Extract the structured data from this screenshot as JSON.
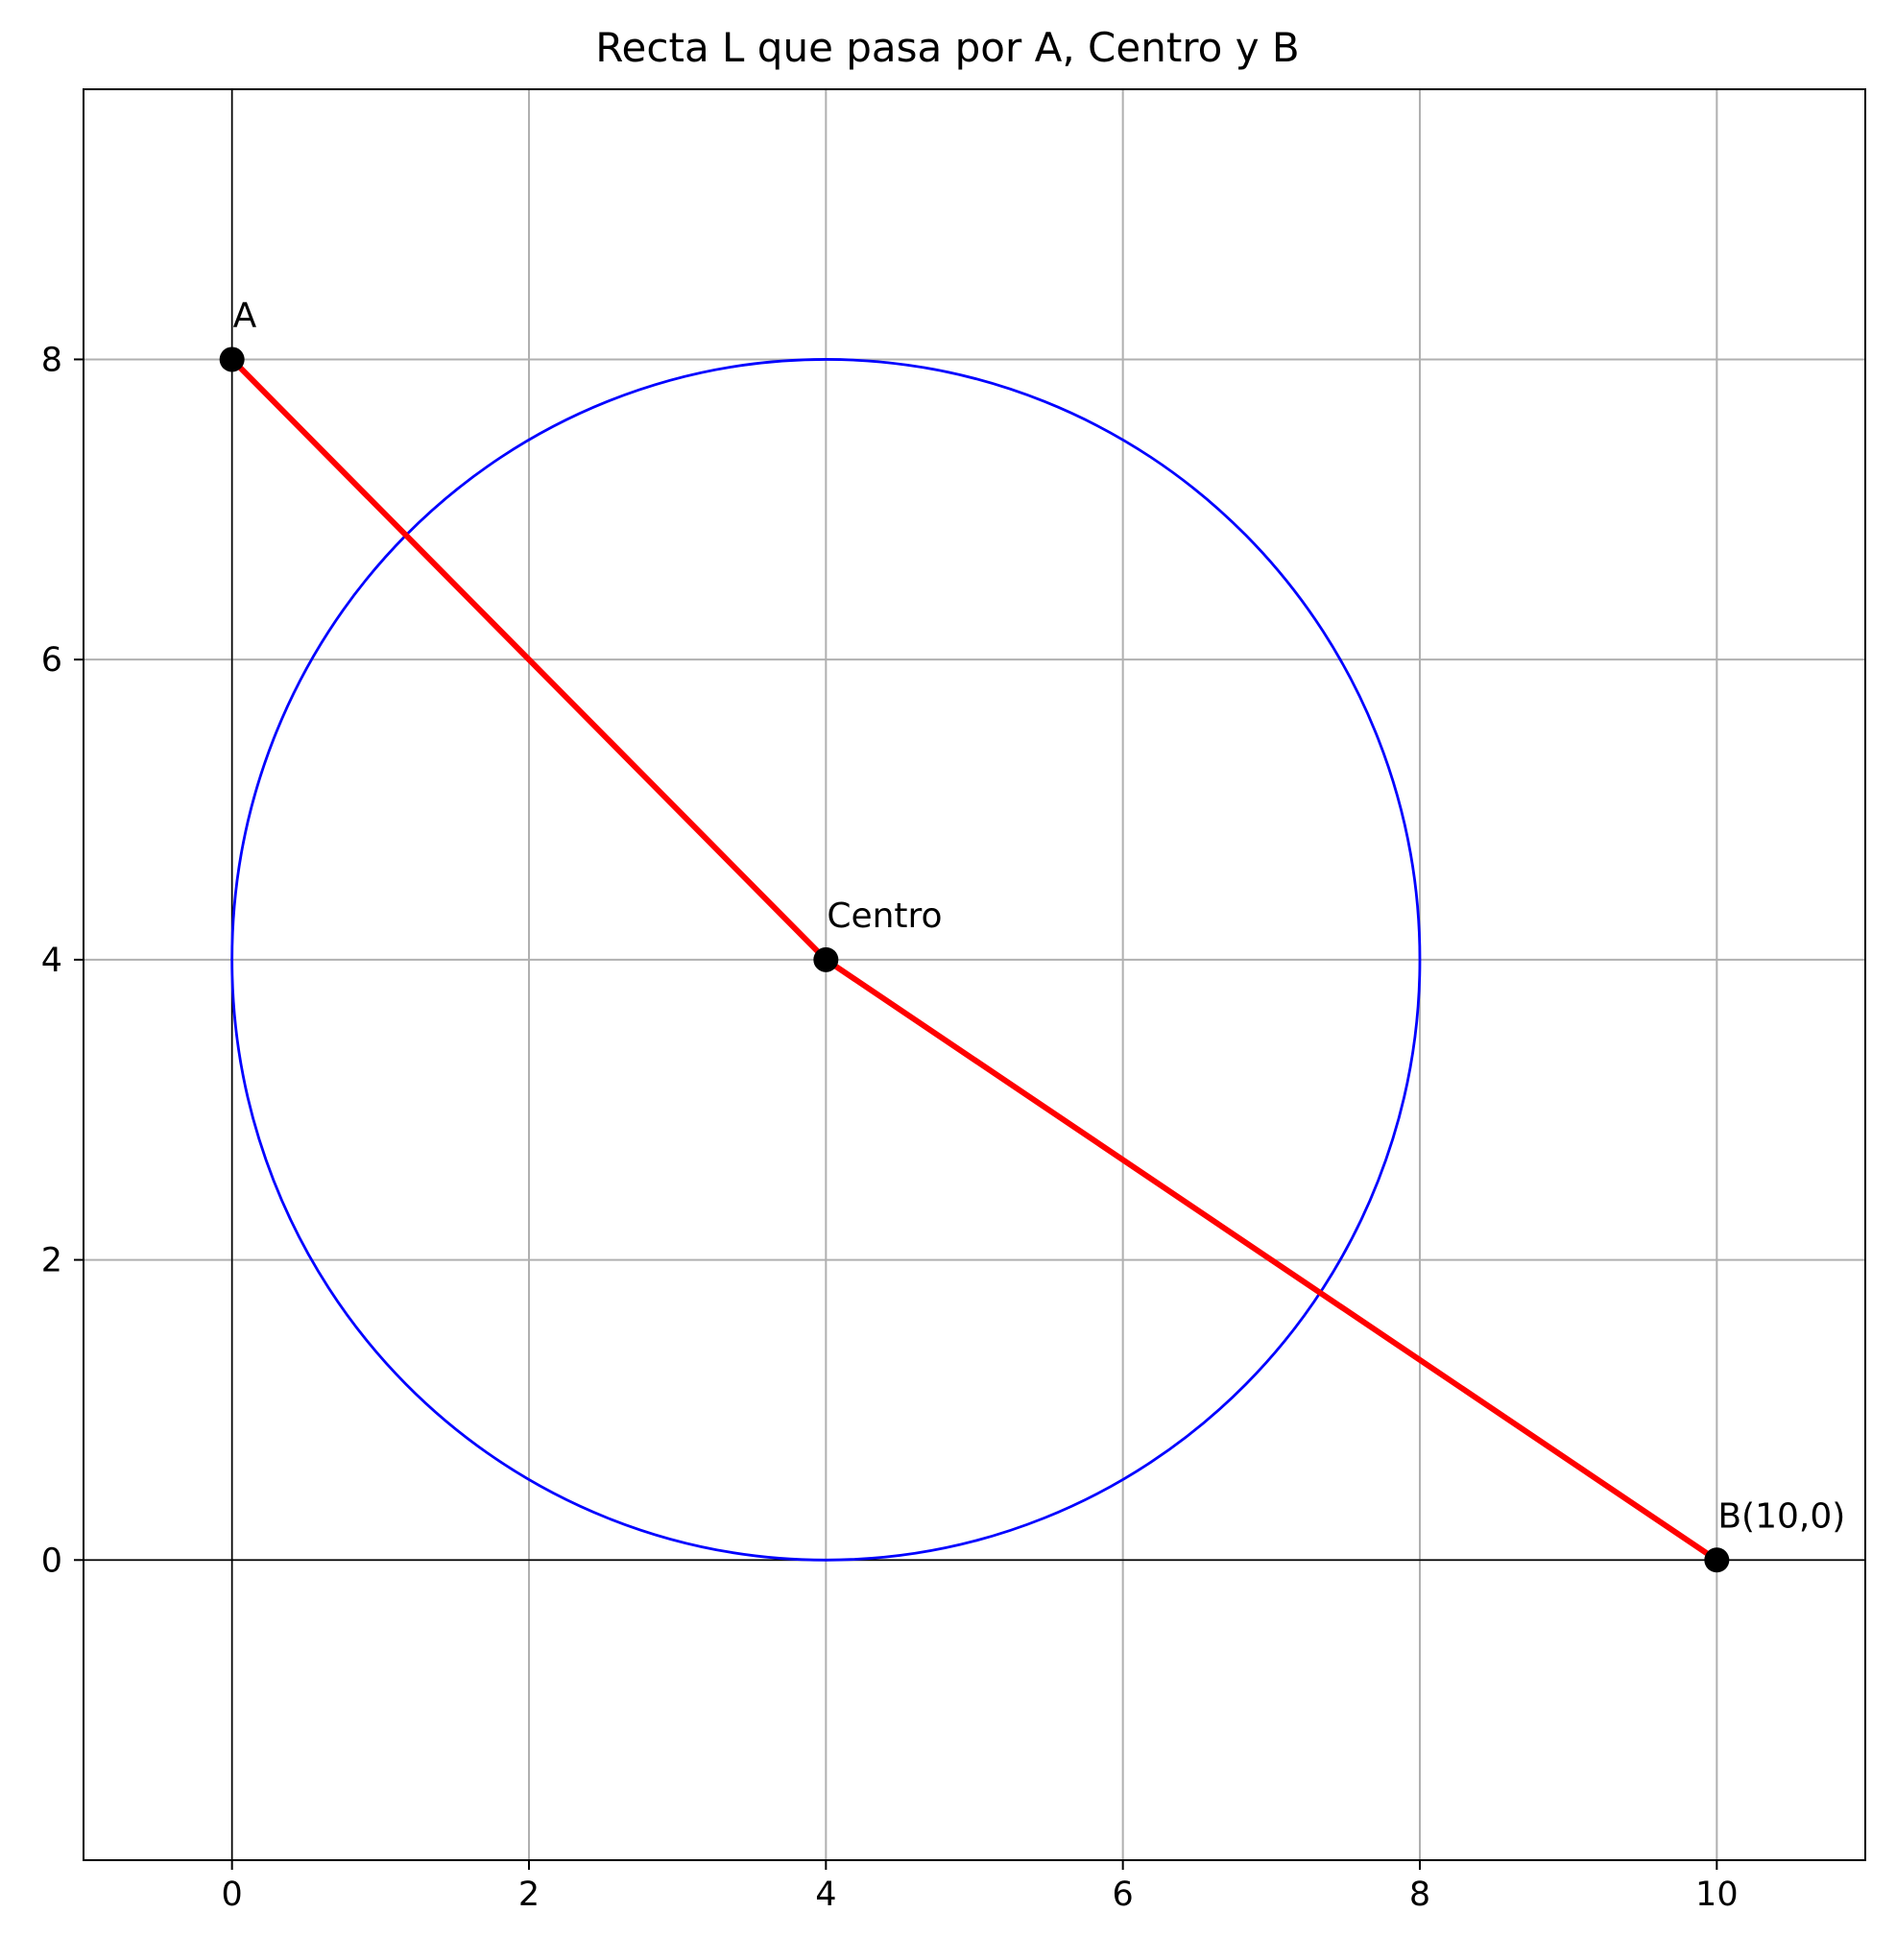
{
  "chart_data": {
    "type": "scatter",
    "title": "Recta L que pasa por A, Centro y B",
    "xlabel": "",
    "ylabel": "",
    "xlim": [
      -1,
      11
    ],
    "ylim": [
      -2,
      9.8
    ],
    "xticks": [
      0,
      2,
      4,
      6,
      8,
      10
    ],
    "yticks": [
      0,
      2,
      4,
      6,
      8
    ],
    "grid": true,
    "axes_lines": {
      "x_axis_at": 0,
      "y_axis_at": 0,
      "color": "#000000"
    },
    "circle": {
      "center": [
        4,
        4
      ],
      "radius": 4,
      "color": "#0000ff"
    },
    "line": {
      "points": [
        [
          0,
          8
        ],
        [
          4,
          4
        ],
        [
          10,
          0
        ]
      ],
      "color": "#ff0000"
    },
    "points": [
      {
        "label": "A",
        "x": 0,
        "y": 8
      },
      {
        "label": "Centro",
        "x": 4,
        "y": 4
      },
      {
        "label": "B(10,0)",
        "x": 10,
        "y": 0
      }
    ],
    "point_color": "#000000",
    "grid_color": "#b0b0b0"
  }
}
